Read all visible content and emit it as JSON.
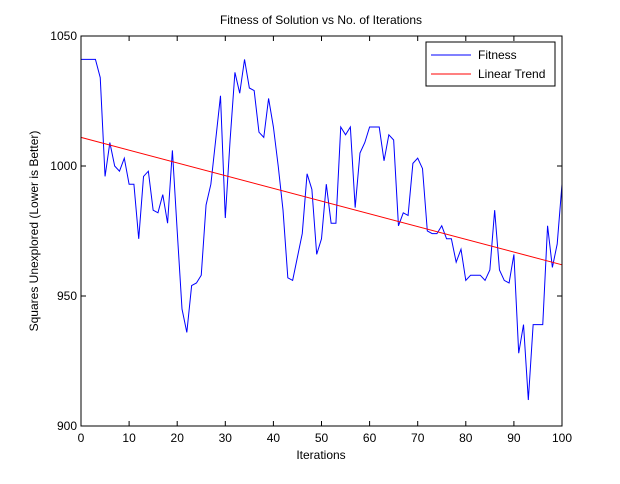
{
  "chart_data": {
    "type": "line",
    "title": "Fitness of Solution vs No. of Iterations",
    "xlabel": "Iterations",
    "ylabel": "Squares Unexplored (Lower is Better)",
    "xlim": [
      0,
      100
    ],
    "ylim": [
      900,
      1050
    ],
    "xticks": [
      0,
      10,
      20,
      30,
      40,
      50,
      60,
      70,
      80,
      90,
      100
    ],
    "yticks": [
      900,
      950,
      1000,
      1050
    ],
    "grid": false,
    "legend_position": "top-right",
    "series": [
      {
        "name": "Fitness",
        "color": "#0000ff",
        "x": [
          0,
          1,
          2,
          3,
          4,
          5,
          6,
          7,
          8,
          9,
          10,
          11,
          12,
          13,
          14,
          15,
          16,
          17,
          18,
          19,
          20,
          21,
          22,
          23,
          24,
          25,
          26,
          27,
          28,
          29,
          30,
          31,
          32,
          33,
          34,
          35,
          36,
          37,
          38,
          39,
          40,
          41,
          42,
          43,
          44,
          45,
          46,
          47,
          48,
          49,
          50,
          51,
          52,
          53,
          54,
          55,
          56,
          57,
          58,
          59,
          60,
          61,
          62,
          63,
          64,
          65,
          66,
          67,
          68,
          69,
          70,
          71,
          72,
          73,
          74,
          75,
          76,
          77,
          78,
          79,
          80,
          81,
          82,
          83,
          84,
          85,
          86,
          87,
          88,
          89,
          90,
          91,
          92,
          93,
          94,
          95,
          96,
          97,
          98,
          99,
          100
        ],
        "y": [
          1041,
          1041,
          1041,
          1041,
          1034,
          996,
          1009,
          1000,
          998,
          1003,
          993,
          993,
          972,
          996,
          998,
          983,
          982,
          989,
          978,
          1006,
          975,
          945,
          936,
          954,
          955,
          958,
          985,
          993,
          1010,
          1027,
          980,
          1010,
          1036,
          1028,
          1041,
          1030,
          1029,
          1013,
          1011,
          1026,
          1015,
          1000,
          983,
          957,
          956,
          965,
          974,
          997,
          991,
          966,
          972,
          993,
          978,
          978,
          1015,
          1012,
          1015,
          984,
          1005,
          1009,
          1015,
          1015,
          1015,
          1002,
          1012,
          1010,
          977,
          982,
          981,
          1001,
          1003,
          999,
          975,
          974,
          974,
          977,
          972,
          972,
          963,
          968,
          956,
          958,
          958,
          958,
          956,
          960,
          983,
          960,
          956,
          955,
          966,
          928,
          939,
          910,
          939,
          939,
          939,
          977,
          961,
          970,
          993
        ]
      },
      {
        "name": "Linear Trend",
        "color": "#ff0000",
        "x": [
          0,
          100
        ],
        "y": [
          1011,
          962
        ]
      }
    ]
  }
}
